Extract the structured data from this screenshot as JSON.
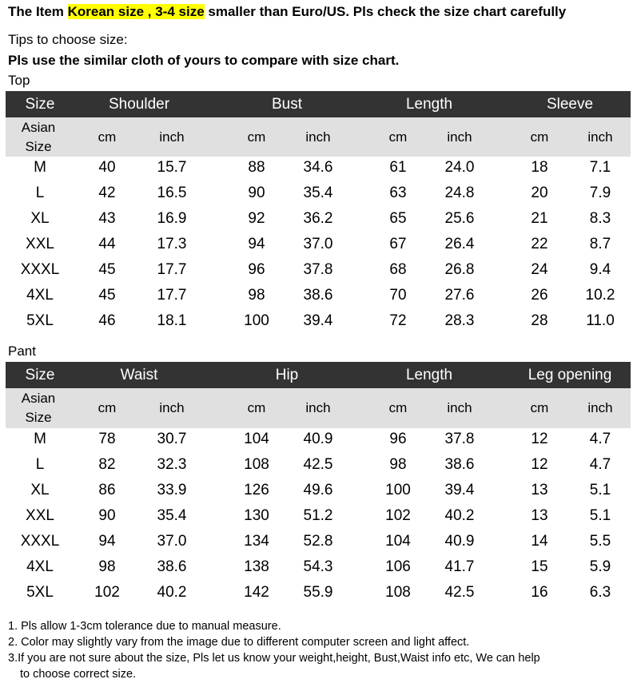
{
  "header": {
    "line1": {
      "before": "The Item ",
      "highlight": "Korean size , 3-4 size",
      "after": " smaller than Euro/US. Pls check the size chart carefully"
    },
    "tips": "Tips to choose size:",
    "advice": "Pls use the similar cloth of yours to compare with size chart."
  },
  "tables": [
    {
      "label": "Top",
      "size_header": "Size",
      "groups": [
        "Shoulder",
        "Bust",
        "Length",
        "Sleeve"
      ],
      "asian_size": [
        "Asian",
        "Size"
      ],
      "units": [
        "cm",
        "inch",
        "cm",
        "inch",
        "cm",
        "inch",
        "cm",
        "inch"
      ],
      "rows": [
        [
          "M",
          "40",
          "15.7",
          "88",
          "34.6",
          "61",
          "24.0",
          "18",
          "7.1"
        ],
        [
          "L",
          "42",
          "16.5",
          "90",
          "35.4",
          "63",
          "24.8",
          "20",
          "7.9"
        ],
        [
          "XL",
          "43",
          "16.9",
          "92",
          "36.2",
          "65",
          "25.6",
          "21",
          "8.3"
        ],
        [
          "XXL",
          "44",
          "17.3",
          "94",
          "37.0",
          "67",
          "26.4",
          "22",
          "8.7"
        ],
        [
          "XXXL",
          "45",
          "17.7",
          "96",
          "37.8",
          "68",
          "26.8",
          "24",
          "9.4"
        ],
        [
          "4XL",
          "45",
          "17.7",
          "98",
          "38.6",
          "70",
          "27.6",
          "26",
          "10.2"
        ],
        [
          "5XL",
          "46",
          "18.1",
          "100",
          "39.4",
          "72",
          "28.3",
          "28",
          "11.0"
        ]
      ]
    },
    {
      "label": "Pant",
      "size_header": "Size",
      "groups": [
        "Waist",
        "Hip",
        "Length",
        "Leg opening"
      ],
      "asian_size": [
        "Asian",
        "Size"
      ],
      "units": [
        "cm",
        "inch",
        "cm",
        "inch",
        "cm",
        "inch",
        "cm",
        "inch"
      ],
      "rows": [
        [
          "M",
          "78",
          "30.7",
          "104",
          "40.9",
          "96",
          "37.8",
          "12",
          "4.7"
        ],
        [
          "L",
          "82",
          "32.3",
          "108",
          "42.5",
          "98",
          "38.6",
          "12",
          "4.7"
        ],
        [
          "XL",
          "86",
          "33.9",
          "126",
          "49.6",
          "100",
          "39.4",
          "13",
          "5.1"
        ],
        [
          "XXL",
          "90",
          "35.4",
          "130",
          "51.2",
          "102",
          "40.2",
          "13",
          "5.1"
        ],
        [
          "XXXL",
          "94",
          "37.0",
          "134",
          "52.8",
          "104",
          "40.9",
          "14",
          "5.5"
        ],
        [
          "4XL",
          "98",
          "38.6",
          "138",
          "54.3",
          "106",
          "41.7",
          "15",
          "5.9"
        ],
        [
          "5XL",
          "102",
          "40.2",
          "142",
          "55.9",
          "108",
          "42.5",
          "16",
          "6.3"
        ]
      ]
    }
  ],
  "notes": [
    "1. Pls allow 1-3cm tolerance due to manual measure.",
    "2. Color may slightly vary from the image due to different computer screen and light affect.",
    "3.If you are not sure about the size, Pls let us know your weight,height, Bust,Waist info etc, We can help",
    "to choose correct size."
  ]
}
